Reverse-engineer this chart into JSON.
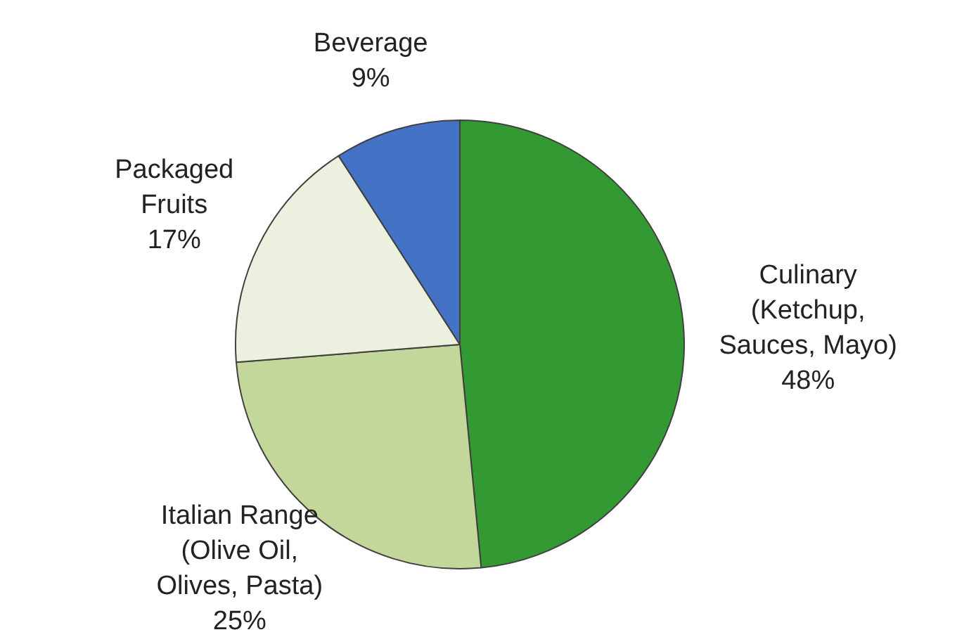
{
  "chart_data": {
    "type": "pie",
    "categories": [
      "Culinary\n(Ketchup,\nSauces, Mayo)",
      "Italian Range\n(Olive Oil,\nOlives, Pasta)",
      "Packaged\nFruits",
      "Beverage"
    ],
    "values": [
      48,
      25,
      17,
      9
    ],
    "value_labels": [
      "48%",
      "25%",
      "17%",
      "9%"
    ],
    "colors": [
      "#339933",
      "#c4d79b",
      "#ebf1de",
      "#4472c4"
    ],
    "legend": false
  }
}
